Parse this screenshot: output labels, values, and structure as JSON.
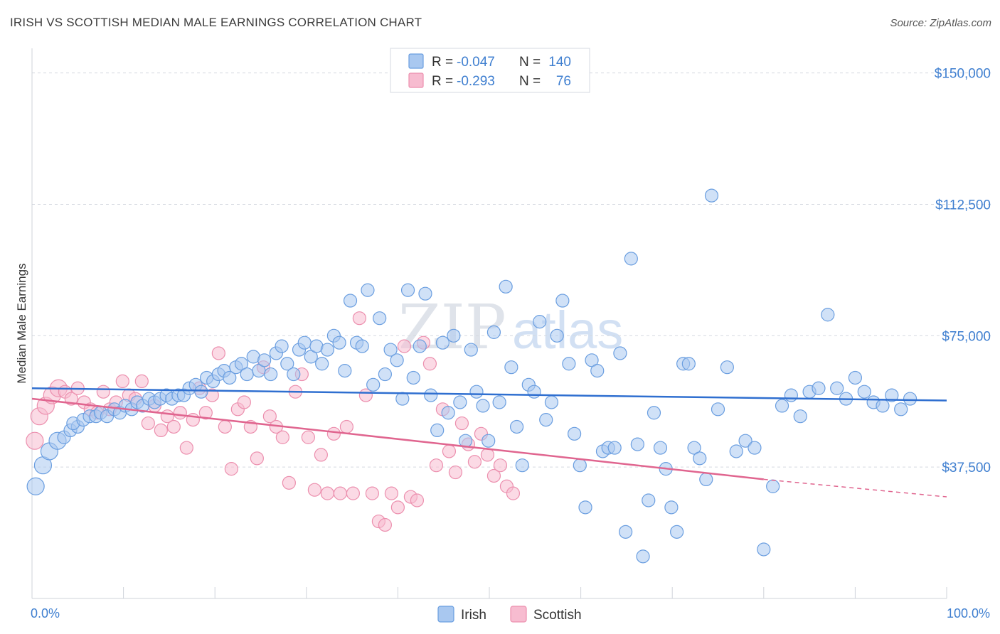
{
  "header": {
    "title": "IRISH VS SCOTTISH MEDIAN MALE EARNINGS CORRELATION CHART",
    "source": "Source: ZipAtlas.com"
  },
  "watermark": {
    "zip": "ZIP",
    "atlas": "atlas"
  },
  "colors": {
    "irish_fill": "#a9c8f0",
    "irish_stroke": "#6a9ee0",
    "irish_line": "#2f6fd0",
    "scottish_fill": "#f7bcd0",
    "scottish_stroke": "#ec8fae",
    "scottish_line": "#e0658f",
    "grid": "#d5d9e0",
    "label_blue": "#3f7fd0"
  },
  "legend": {
    "irish": {
      "r_label": "R =",
      "r_value": "-0.047",
      "n_label": "N =",
      "n_value": "140"
    },
    "scottish": {
      "r_label": "R =",
      "r_value": "-0.293",
      "n_label": "N =",
      "n_value": "76"
    }
  },
  "chart_data": {
    "type": "scatter",
    "title": "IRISH VS SCOTTISH MEDIAN MALE EARNINGS CORRELATION CHART",
    "xlabel": "",
    "ylabel": "Median Male Earnings",
    "xlim": [
      0,
      100
    ],
    "ylim": [
      0,
      155000
    ],
    "x_tick_labels": [
      "0.0%",
      "100.0%"
    ],
    "y_ticks": [
      37500,
      75000,
      112500,
      150000
    ],
    "y_tick_labels": [
      "$37,500",
      "$75,000",
      "$112,500",
      "$150,000"
    ],
    "legend_position": "bottom-center",
    "series": [
      {
        "name": "Irish",
        "r": -0.047,
        "n": 140,
        "trend": {
          "x": [
            0,
            100
          ],
          "y": [
            60000,
            56500
          ]
        },
        "points": [
          [
            0.4,
            32000
          ],
          [
            1.2,
            38000
          ],
          [
            1.9,
            42000
          ],
          [
            2.8,
            45000
          ],
          [
            3.5,
            46000
          ],
          [
            4.2,
            48000
          ],
          [
            5.0,
            49000
          ],
          [
            4.5,
            50000
          ],
          [
            5.6,
            51000
          ],
          [
            6.3,
            52000
          ],
          [
            7.0,
            52000
          ],
          [
            7.5,
            53000
          ],
          [
            8.2,
            52000
          ],
          [
            9.0,
            54000
          ],
          [
            9.6,
            53000
          ],
          [
            10.2,
            55000
          ],
          [
            10.9,
            54000
          ],
          [
            11.5,
            56000
          ],
          [
            12.1,
            55000
          ],
          [
            12.8,
            57000
          ],
          [
            13.4,
            56000
          ],
          [
            14.0,
            57000
          ],
          [
            14.7,
            58000
          ],
          [
            15.3,
            57000
          ],
          [
            16.0,
            58000
          ],
          [
            16.6,
            58000
          ],
          [
            17.2,
            60000
          ],
          [
            17.9,
            61000
          ],
          [
            18.5,
            59000
          ],
          [
            19.1,
            63000
          ],
          [
            19.8,
            62000
          ],
          [
            20.4,
            64000
          ],
          [
            21.0,
            65000
          ],
          [
            21.6,
            63000
          ],
          [
            22.3,
            66000
          ],
          [
            22.9,
            67000
          ],
          [
            23.5,
            64000
          ],
          [
            24.2,
            69000
          ],
          [
            24.8,
            65000
          ],
          [
            25.4,
            68000
          ],
          [
            26.1,
            64000
          ],
          [
            26.7,
            70000
          ],
          [
            27.3,
            72000
          ],
          [
            27.9,
            67000
          ],
          [
            28.6,
            64000
          ],
          [
            29.2,
            71000
          ],
          [
            29.8,
            73000
          ],
          [
            30.5,
            69000
          ],
          [
            31.1,
            72000
          ],
          [
            31.7,
            67000
          ],
          [
            32.3,
            71000
          ],
          [
            33.0,
            75000
          ],
          [
            33.6,
            73000
          ],
          [
            34.2,
            65000
          ],
          [
            34.8,
            85000
          ],
          [
            35.5,
            73000
          ],
          [
            36.1,
            72000
          ],
          [
            36.7,
            88000
          ],
          [
            37.3,
            61000
          ],
          [
            38.0,
            80000
          ],
          [
            38.6,
            64000
          ],
          [
            39.2,
            71000
          ],
          [
            39.9,
            68000
          ],
          [
            40.5,
            57000
          ],
          [
            41.1,
            88000
          ],
          [
            41.7,
            63000
          ],
          [
            42.4,
            72000
          ],
          [
            43.0,
            87000
          ],
          [
            43.6,
            58000
          ],
          [
            44.3,
            48000
          ],
          [
            44.9,
            73000
          ],
          [
            45.5,
            53000
          ],
          [
            46.1,
            75000
          ],
          [
            46.8,
            56000
          ],
          [
            47.4,
            45000
          ],
          [
            48.0,
            71000
          ],
          [
            48.6,
            59000
          ],
          [
            49.3,
            55000
          ],
          [
            49.9,
            45000
          ],
          [
            50.5,
            76000
          ],
          [
            51.1,
            56000
          ],
          [
            51.8,
            89000
          ],
          [
            52.4,
            66000
          ],
          [
            53.0,
            49000
          ],
          [
            53.6,
            38000
          ],
          [
            54.3,
            61000
          ],
          [
            54.9,
            59000
          ],
          [
            55.5,
            79000
          ],
          [
            56.2,
            51000
          ],
          [
            56.8,
            56000
          ],
          [
            57.4,
            75000
          ],
          [
            58.0,
            85000
          ],
          [
            58.7,
            67000
          ],
          [
            59.3,
            47000
          ],
          [
            59.9,
            38000
          ],
          [
            60.5,
            26000
          ],
          [
            61.2,
            68000
          ],
          [
            61.8,
            65000
          ],
          [
            62.4,
            42000
          ],
          [
            63.0,
            43000
          ],
          [
            63.7,
            43000
          ],
          [
            64.3,
            70000
          ],
          [
            64.9,
            19000
          ],
          [
            65.5,
            97000
          ],
          [
            66.2,
            44000
          ],
          [
            66.8,
            12000
          ],
          [
            67.4,
            28000
          ],
          [
            68.0,
            53000
          ],
          [
            68.7,
            43000
          ],
          [
            69.3,
            37000
          ],
          [
            69.9,
            26000
          ],
          [
            70.5,
            19000
          ],
          [
            71.2,
            67000
          ],
          [
            71.8,
            67000
          ],
          [
            72.4,
            43000
          ],
          [
            73.0,
            40000
          ],
          [
            73.7,
            34000
          ],
          [
            74.3,
            115000
          ],
          [
            75.0,
            54000
          ],
          [
            76.0,
            66000
          ],
          [
            77.0,
            42000
          ],
          [
            78.0,
            45000
          ],
          [
            79.0,
            43000
          ],
          [
            80.0,
            14000
          ],
          [
            81.0,
            32000
          ],
          [
            82.0,
            55000
          ],
          [
            83.0,
            58000
          ],
          [
            84.0,
            52000
          ],
          [
            85.0,
            59000
          ],
          [
            86.0,
            60000
          ],
          [
            87.0,
            81000
          ],
          [
            88.0,
            60000
          ],
          [
            89.0,
            57000
          ],
          [
            90.0,
            63000
          ],
          [
            91.0,
            59000
          ],
          [
            92.0,
            56000
          ],
          [
            93.0,
            55000
          ],
          [
            94.0,
            58000
          ],
          [
            95.0,
            54000
          ],
          [
            96.0,
            57000
          ]
        ]
      },
      {
        "name": "Scottish",
        "r": -0.293,
        "n": 76,
        "trend": {
          "x": [
            0,
            80
          ],
          "y": [
            57000,
            34000
          ]
        },
        "trend_dashed": {
          "x": [
            80,
            100
          ],
          "y": [
            34000,
            29000
          ]
        },
        "points": [
          [
            0.3,
            45000
          ],
          [
            0.8,
            52000
          ],
          [
            1.5,
            55000
          ],
          [
            2.2,
            58000
          ],
          [
            2.9,
            60000
          ],
          [
            3.6,
            59000
          ],
          [
            4.3,
            57000
          ],
          [
            5.0,
            60000
          ],
          [
            5.7,
            56000
          ],
          [
            6.4,
            54000
          ],
          [
            7.1,
            53000
          ],
          [
            7.8,
            59000
          ],
          [
            8.5,
            54000
          ],
          [
            9.2,
            56000
          ],
          [
            9.9,
            62000
          ],
          [
            10.6,
            58000
          ],
          [
            11.3,
            57000
          ],
          [
            12.0,
            62000
          ],
          [
            12.7,
            50000
          ],
          [
            13.4,
            55000
          ],
          [
            14.1,
            48000
          ],
          [
            14.8,
            52000
          ],
          [
            15.5,
            49000
          ],
          [
            16.2,
            53000
          ],
          [
            16.9,
            43000
          ],
          [
            17.6,
            51000
          ],
          [
            18.3,
            60000
          ],
          [
            19.0,
            53000
          ],
          [
            19.7,
            58000
          ],
          [
            20.4,
            70000
          ],
          [
            21.1,
            49000
          ],
          [
            21.8,
            37000
          ],
          [
            22.5,
            54000
          ],
          [
            23.2,
            56000
          ],
          [
            23.9,
            49000
          ],
          [
            24.6,
            40000
          ],
          [
            25.3,
            66000
          ],
          [
            26.0,
            52000
          ],
          [
            26.7,
            49000
          ],
          [
            27.4,
            46000
          ],
          [
            28.1,
            33000
          ],
          [
            28.8,
            59000
          ],
          [
            29.5,
            64000
          ],
          [
            30.2,
            46000
          ],
          [
            30.9,
            31000
          ],
          [
            31.6,
            41000
          ],
          [
            32.3,
            30000
          ],
          [
            33.0,
            47000
          ],
          [
            33.7,
            30000
          ],
          [
            34.4,
            49000
          ],
          [
            35.1,
            30000
          ],
          [
            35.8,
            80000
          ],
          [
            36.5,
            58000
          ],
          [
            37.2,
            30000
          ],
          [
            37.9,
            22000
          ],
          [
            38.6,
            21000
          ],
          [
            39.3,
            30000
          ],
          [
            40.0,
            26000
          ],
          [
            40.7,
            72000
          ],
          [
            41.4,
            29000
          ],
          [
            42.1,
            28000
          ],
          [
            42.8,
            73000
          ],
          [
            43.5,
            67000
          ],
          [
            44.2,
            38000
          ],
          [
            44.9,
            54000
          ],
          [
            45.6,
            42000
          ],
          [
            46.3,
            36000
          ],
          [
            47.0,
            50000
          ],
          [
            47.7,
            44000
          ],
          [
            48.4,
            39000
          ],
          [
            49.1,
            47000
          ],
          [
            49.8,
            41000
          ],
          [
            50.5,
            35000
          ],
          [
            51.2,
            38000
          ],
          [
            51.9,
            32000
          ],
          [
            52.6,
            30000
          ]
        ]
      }
    ]
  },
  "bottom_legend": {
    "irish": "Irish",
    "scottish": "Scottish"
  }
}
